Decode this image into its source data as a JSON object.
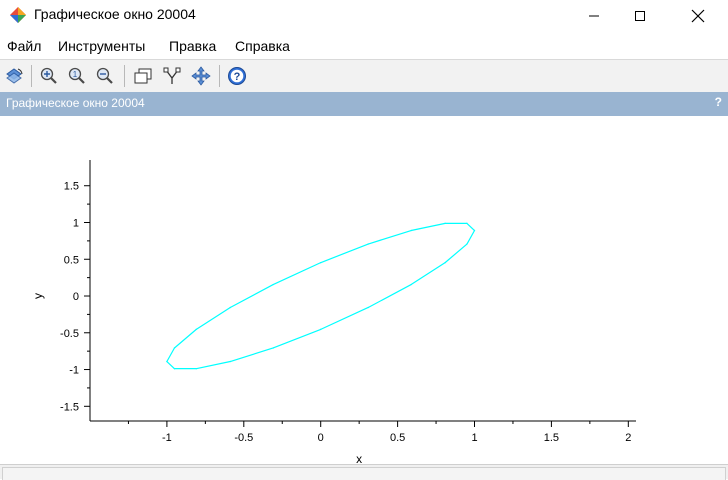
{
  "window": {
    "title": "Графическое окно 20004",
    "minimize_icon": "minimize-icon",
    "maximize_icon": "maximize-icon",
    "close_icon": "close-icon"
  },
  "menu": {
    "items": [
      "Файл",
      "Инструменты",
      "Правка",
      "Справка"
    ]
  },
  "toolbar": {
    "icons": [
      "rotate-icon",
      "zoom-in-icon",
      "zoom-reset-icon",
      "zoom-out-icon",
      "datatip-icon",
      "axes-icon",
      "pan-icon",
      "help-icon"
    ]
  },
  "panel": {
    "title": "Графическое окно 20004",
    "help": "?"
  },
  "chart_data": {
    "type": "line",
    "xlabel": "x",
    "ylabel": "y",
    "xlim": [
      -1.5,
      2.05
    ],
    "ylim": [
      -1.7,
      1.85
    ],
    "xticks": [
      -1,
      -0.5,
      0,
      0.5,
      1,
      1.5,
      2
    ],
    "xtick_labels": [
      "-1",
      "-0.5",
      "0",
      "0.5",
      "1",
      "1.5",
      "2"
    ],
    "yticks": [
      -1.5,
      -1,
      -0.5,
      0,
      0.5,
      1,
      1.5
    ],
    "ytick_labels": [
      "-1.5",
      "-1",
      "-0.5",
      "0",
      "0.5",
      "1",
      "1.5"
    ],
    "grid": false,
    "series": [
      {
        "color": "#00ffff",
        "x": [
          1.0,
          0.951,
          0.809,
          0.588,
          0.309,
          0.0,
          -0.309,
          -0.588,
          -0.809,
          -0.951,
          -1.0,
          -0.951,
          -0.809,
          -0.588,
          -0.309,
          0.0,
          0.309,
          0.588,
          0.809,
          0.951,
          1.0,
          0.951,
          0.809,
          0.588,
          0.309,
          0.0,
          -0.309,
          -0.588,
          -0.809,
          -0.951,
          -1.0,
          -0.951,
          -0.809,
          -0.588,
          -0.309,
          0.0,
          0.309,
          0.588,
          0.809,
          0.951,
          1.0
        ],
        "y": [
          0.891,
          0.988,
          0.988,
          0.891,
          0.707,
          0.454,
          0.156,
          -0.156,
          -0.454,
          -0.707,
          -0.891,
          -0.988,
          -0.988,
          -0.891,
          -0.707,
          -0.454,
          -0.156,
          0.156,
          0.454,
          0.707,
          0.891,
          0.988,
          0.988,
          0.891,
          0.707,
          0.454,
          0.156,
          -0.156,
          -0.454,
          -0.707,
          -0.891,
          -0.988,
          -0.988,
          -0.891,
          -0.707,
          -0.454,
          -0.156,
          0.156,
          0.454,
          0.707,
          0.891
        ]
      }
    ]
  }
}
